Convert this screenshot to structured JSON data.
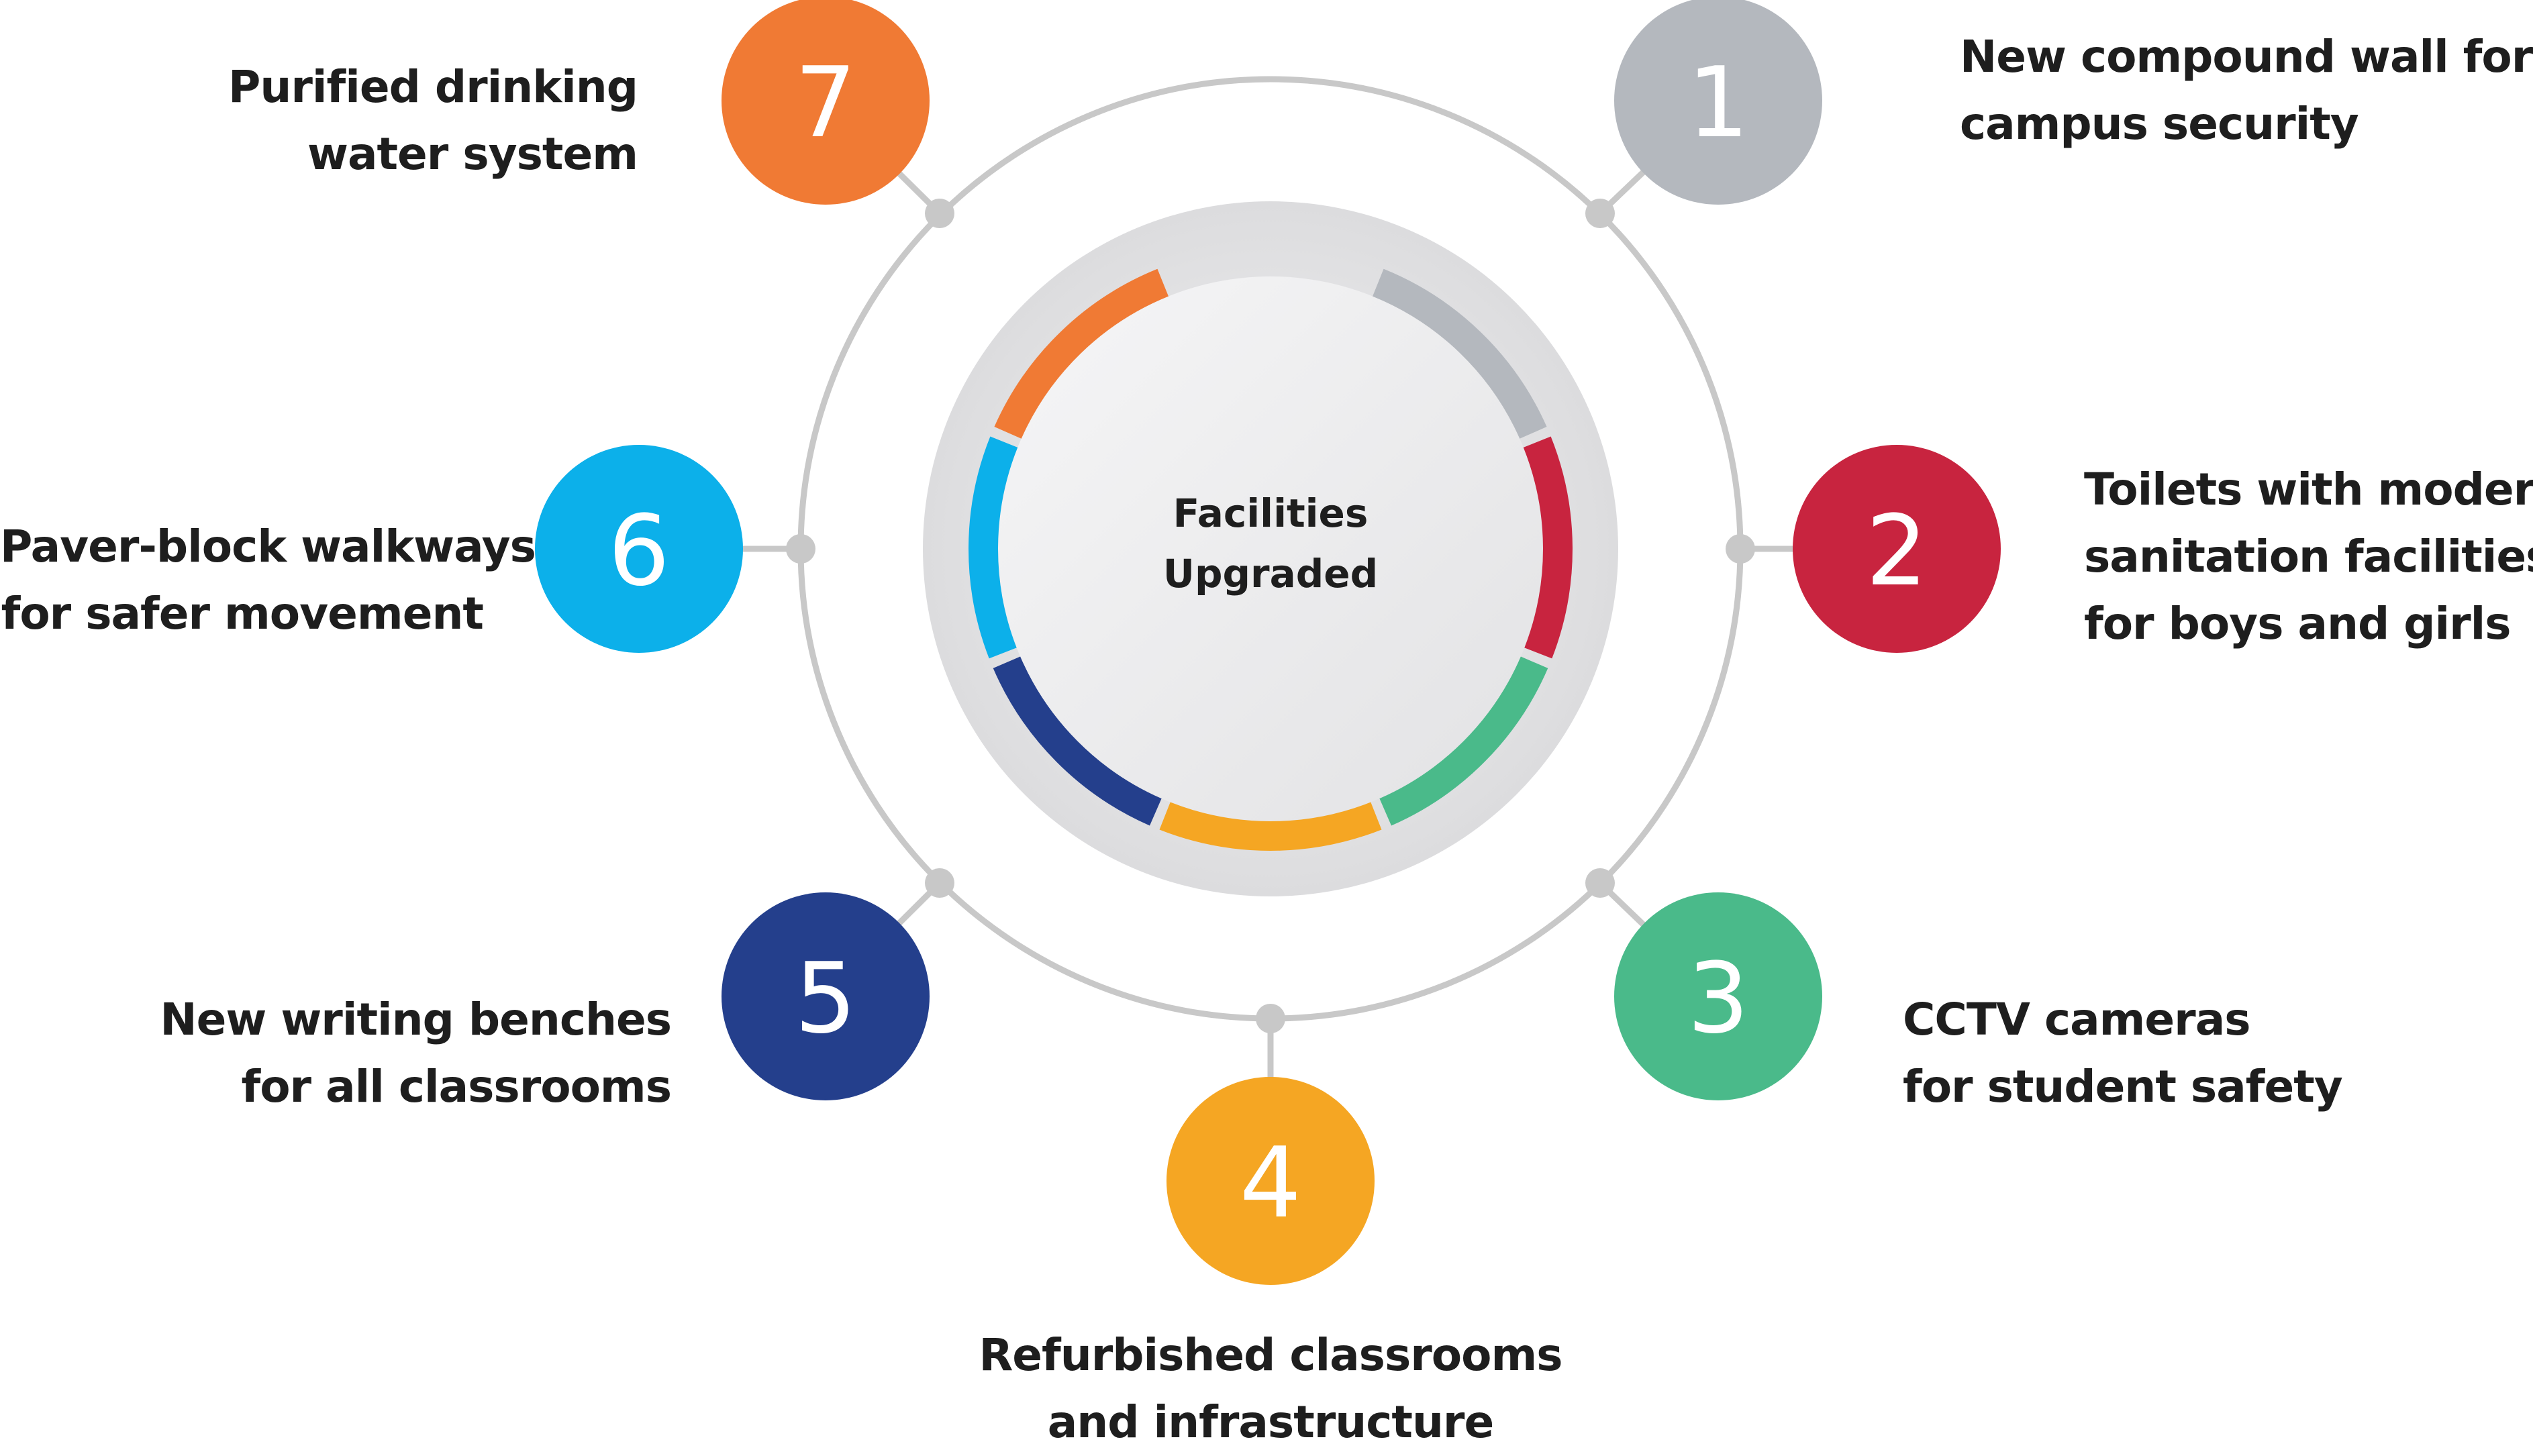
{
  "center": {
    "line1": "Facilities",
    "line2": "Upgraded"
  },
  "colors": {
    "ring": "#c8c8c8",
    "c1": "#b4b8be",
    "c2": "#c8243f",
    "c3": "#4aba8a",
    "c4": "#f5a623",
    "c5": "#243f8c",
    "c6": "#0cb0ea",
    "c7": "#f07a34"
  },
  "items": [
    {
      "number": "1",
      "line1": "New compound wall for",
      "line2": "campus security",
      "line3": ""
    },
    {
      "number": "2",
      "line1": "Toilets with modern",
      "line2": "sanitation facilities",
      "line3": "for boys and girls"
    },
    {
      "number": "3",
      "line1": "CCTV cameras",
      "line2": "for student safety",
      "line3": ""
    },
    {
      "number": "4",
      "line1": "Refurbished classrooms",
      "line2": "and infrastructure",
      "line3": ""
    },
    {
      "number": "5",
      "line1": "New writing benches",
      "line2": "for all classrooms",
      "line3": ""
    },
    {
      "number": "6",
      "line1": "Paver-block walkways",
      "line2": "for safer movement",
      "line3": ""
    },
    {
      "number": "7",
      "line1": "Purified drinking",
      "line2": "water system",
      "line3": ""
    }
  ]
}
